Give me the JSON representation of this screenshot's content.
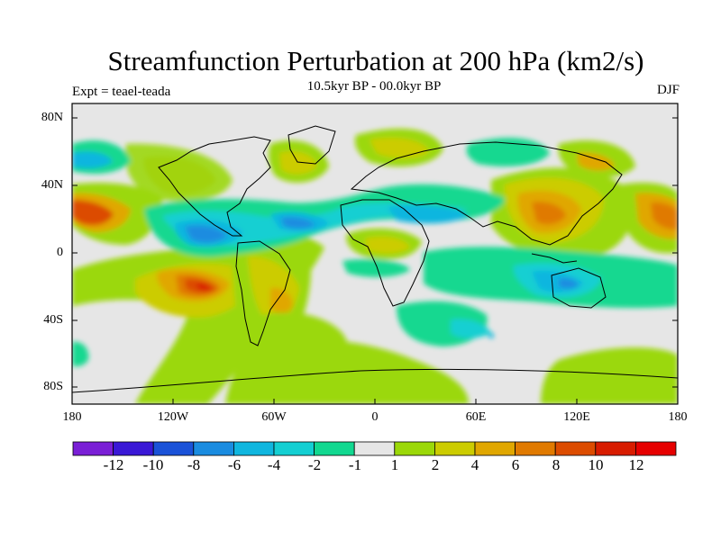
{
  "title": "Streamfunction Perturbation at 200 hPa (km2/s)",
  "subtitle": "10.5kyr BP - 00.0kyr BP",
  "left_label": "Expt = teael-teada",
  "right_label": "DJF",
  "lat_ticks": [
    "80N",
    "40N",
    "0",
    "40S",
    "80S"
  ],
  "lon_ticks": [
    "180",
    "120W",
    "60W",
    "0",
    "60E",
    "120E",
    "180"
  ],
  "colorbar": {
    "labels": [
      "-12",
      "-10",
      "-8",
      "-6",
      "-4",
      "-2",
      "-1",
      "1",
      "2",
      "4",
      "6",
      "8",
      "10",
      "12"
    ],
    "colors": [
      "#7a1fd6",
      "#3a18d6",
      "#1a52d8",
      "#1a8ce0",
      "#10b6df",
      "#14cfd2",
      "#12d890",
      "#e6e6e6",
      "#9bd808",
      "#cccc00",
      "#e0a700",
      "#e07a00",
      "#dc4c00",
      "#d81c00",
      "#e60000"
    ]
  },
  "chart_data": {
    "type": "contour-map",
    "title": "Streamfunction Perturbation at 200 hPa (km2/s)",
    "subtitle": "10.5kyr BP - 00.0kyr BP",
    "season": "DJF",
    "experiment": "teael-teada",
    "lat_range": [
      -90,
      90
    ],
    "lon_range": [
      -180,
      180
    ],
    "contour_levels": [
      -12,
      -10,
      -8,
      -6,
      -4,
      -2,
      -1,
      1,
      2,
      4,
      6,
      8,
      10,
      12
    ],
    "features": [
      {
        "lon": -170,
        "lat": 24,
        "value": 8
      },
      {
        "lon": -100,
        "lat": -22,
        "value": 10
      },
      {
        "lon": -60,
        "lat": -25,
        "value": 6
      },
      {
        "lon": -130,
        "lat": 40,
        "value": 4
      },
      {
        "lon": -105,
        "lat": 12,
        "value": -6
      },
      {
        "lon": -50,
        "lat": 20,
        "value": -5
      },
      {
        "lon": 20,
        "lat": 18,
        "value": -4
      },
      {
        "lon": 95,
        "lat": 32,
        "value": 6
      },
      {
        "lon": 170,
        "lat": 25,
        "value": 6
      },
      {
        "lon": 115,
        "lat": -20,
        "value": -4
      },
      {
        "lon": 0,
        "lat": 70,
        "value": 2
      },
      {
        "lon": -40,
        "lat": -50,
        "value": 2
      }
    ]
  }
}
